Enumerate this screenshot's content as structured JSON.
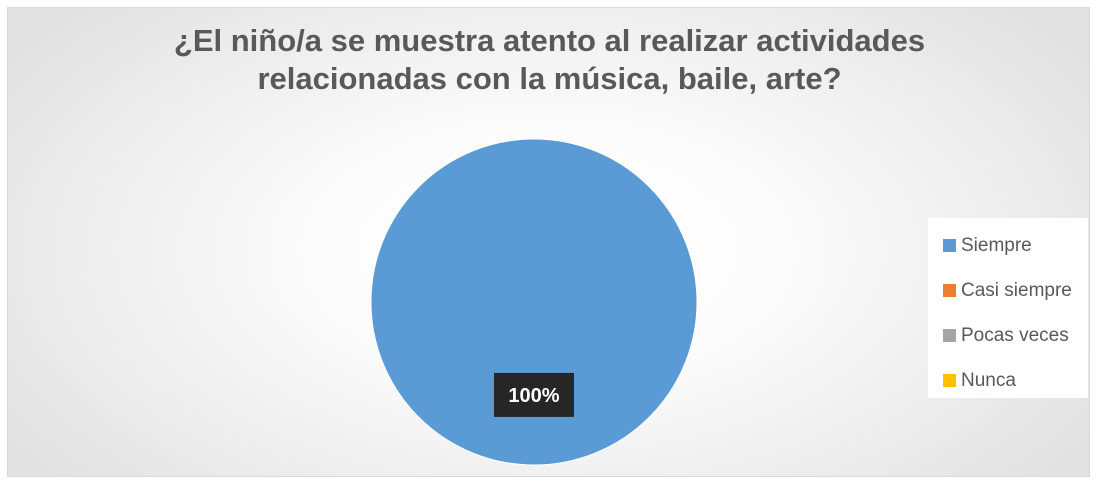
{
  "chart_data": {
    "type": "pie",
    "title": "¿El niño/a se muestra atento al realizar actividades relacionadas con la música, baile, arte?",
    "categories": [
      "Siempre",
      "Casi siempre",
      "Pocas veces",
      "Nunca"
    ],
    "values": [
      100,
      0,
      0,
      0
    ],
    "data_labels": [
      "100%"
    ],
    "colors": [
      "#5b9bd5",
      "#ed7d31",
      "#a5a5a5",
      "#ffc000"
    ],
    "legend_position": "right",
    "data_label_background": "#262626",
    "data_label_color": "#ffffff"
  }
}
